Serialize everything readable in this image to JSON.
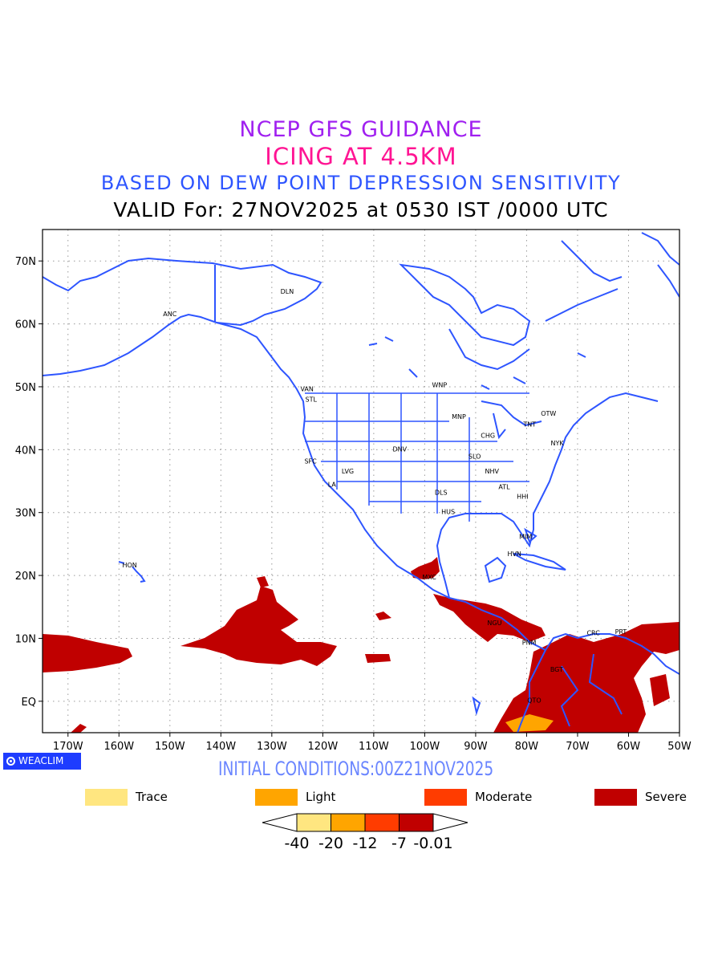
{
  "titles": {
    "line1": "NCEP GFS GUIDANCE",
    "line2": "ICING AT 4.5KM",
    "line3": "BASED ON DEW POINT DEPRESSION SENSITIVITY",
    "line4": "VALID For: 27NOV2025 at 0530 IST /0000 UTC"
  },
  "axes": {
    "lon_labels": [
      "170W",
      "160W",
      "150W",
      "140W",
      "130W",
      "120W",
      "110W",
      "100W",
      "90W",
      "80W",
      "70W",
      "60W",
      "50W"
    ],
    "lat_labels": [
      "70N",
      "60N",
      "50N",
      "40N",
      "30N",
      "20N",
      "10N",
      "EQ"
    ]
  },
  "cities": [
    {
      "code": "ANC",
      "lon": -150,
      "lat": 61.2
    },
    {
      "code": "DLN",
      "lon": -127,
      "lat": 64.8
    },
    {
      "code": "VAN",
      "lon": -123.1,
      "lat": 49.3
    },
    {
      "code": "STL",
      "lon": -122.3,
      "lat": 47.6
    },
    {
      "code": "WNP",
      "lon": -97.1,
      "lat": 49.9
    },
    {
      "code": "MNP",
      "lon": -93.3,
      "lat": 44.9
    },
    {
      "code": "OTW",
      "lon": -75.7,
      "lat": 45.4
    },
    {
      "code": "TNT",
      "lon": -79.4,
      "lat": 43.7
    },
    {
      "code": "CHG",
      "lon": -87.6,
      "lat": 41.9
    },
    {
      "code": "NYK",
      "lon": -74,
      "lat": 40.7
    },
    {
      "code": "DNV",
      "lon": -104.9,
      "lat": 39.7
    },
    {
      "code": "SFC",
      "lon": -122.4,
      "lat": 37.8
    },
    {
      "code": "SLO",
      "lon": -90.2,
      "lat": 38.6
    },
    {
      "code": "LVG",
      "lon": -115.1,
      "lat": 36.2
    },
    {
      "code": "NHV",
      "lon": -86.8,
      "lat": 36.2
    },
    {
      "code": "LA",
      "lon": -118.2,
      "lat": 34.1
    },
    {
      "code": "ATL",
      "lon": -84.4,
      "lat": 33.7
    },
    {
      "code": "DLS",
      "lon": -96.8,
      "lat": 32.8
    },
    {
      "code": "HHI",
      "lon": -80.8,
      "lat": 32.2
    },
    {
      "code": "HUS",
      "lon": -95.4,
      "lat": 29.8
    },
    {
      "code": "MIM",
      "lon": -80.2,
      "lat": 25.8
    },
    {
      "code": "HVN",
      "lon": -82.4,
      "lat": 23.1
    },
    {
      "code": "HON",
      "lon": -157.9,
      "lat": 21.3
    },
    {
      "code": "MXC",
      "lon": -99.1,
      "lat": 19.4
    },
    {
      "code": "NGU",
      "lon": -86.3,
      "lat": 12.1
    },
    {
      "code": "CRC",
      "lon": -66.9,
      "lat": 10.5
    },
    {
      "code": "PNM",
      "lon": -79.5,
      "lat": 9
    },
    {
      "code": "PRT",
      "lon": -61.5,
      "lat": 10.7
    },
    {
      "code": "BGT",
      "lon": -74.1,
      "lat": 4.7
    },
    {
      "code": "QTO",
      "lon": -78.5,
      "lat": -0.2
    }
  ],
  "footer": {
    "badge": "WEACLIM",
    "initial_conditions": "INITIAL CONDITIONS:00Z21NOV2025"
  },
  "legend": [
    {
      "label": "Trace",
      "color": "#ffe680"
    },
    {
      "label": "Light",
      "color": "#ffa500"
    },
    {
      "label": "Moderate",
      "color": "#ff3c00"
    },
    {
      "label": "Severe",
      "color": "#c00000"
    }
  ],
  "colorbar": {
    "ticks": [
      "-40",
      "-20",
      "-12",
      "-7",
      "-0.01"
    ],
    "colors": [
      "#ffe680",
      "#ffa500",
      "#ff3c00",
      "#c00000"
    ]
  },
  "colors": {
    "coastline": "#2e55ff",
    "icing_severe": "#c00000",
    "icing_light": "#ffa500"
  }
}
